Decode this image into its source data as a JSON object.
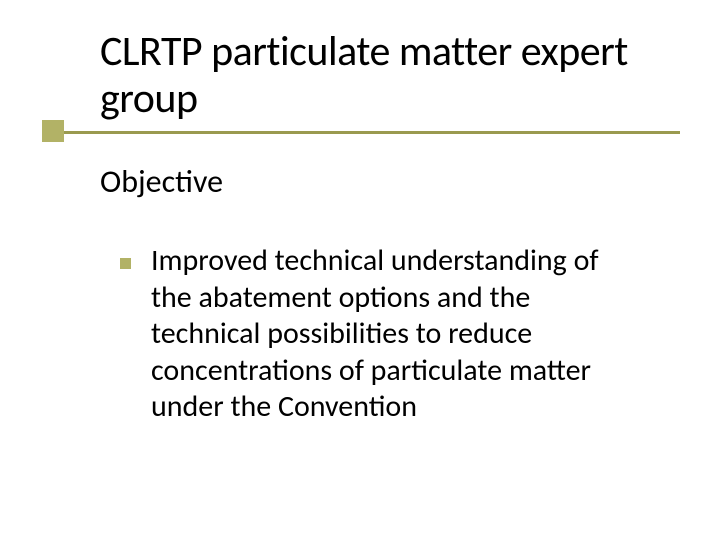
{
  "slide": {
    "background_color": "#ffffff",
    "text_color": "#000000",
    "font_family": "Segoe UI / Gill Sans",
    "title": {
      "text": "CLRTP particulate matter expert group",
      "fontsize": 42,
      "weight": 400
    },
    "accent": {
      "square_color": "#b2b266",
      "underline_color": "#9a9a4f",
      "underline_thickness": 2.5,
      "square_size": 22
    },
    "subheading": {
      "text": "Objective",
      "fontsize": 32
    },
    "bullets": [
      {
        "marker_color": "#b2b266",
        "text": "Improved technical understanding of the abatement options and the technical possibilities to reduce concentrations of particulate matter under the Convention"
      }
    ],
    "bullet_fontsize": 30,
    "bullet_marker_size": 11
  }
}
